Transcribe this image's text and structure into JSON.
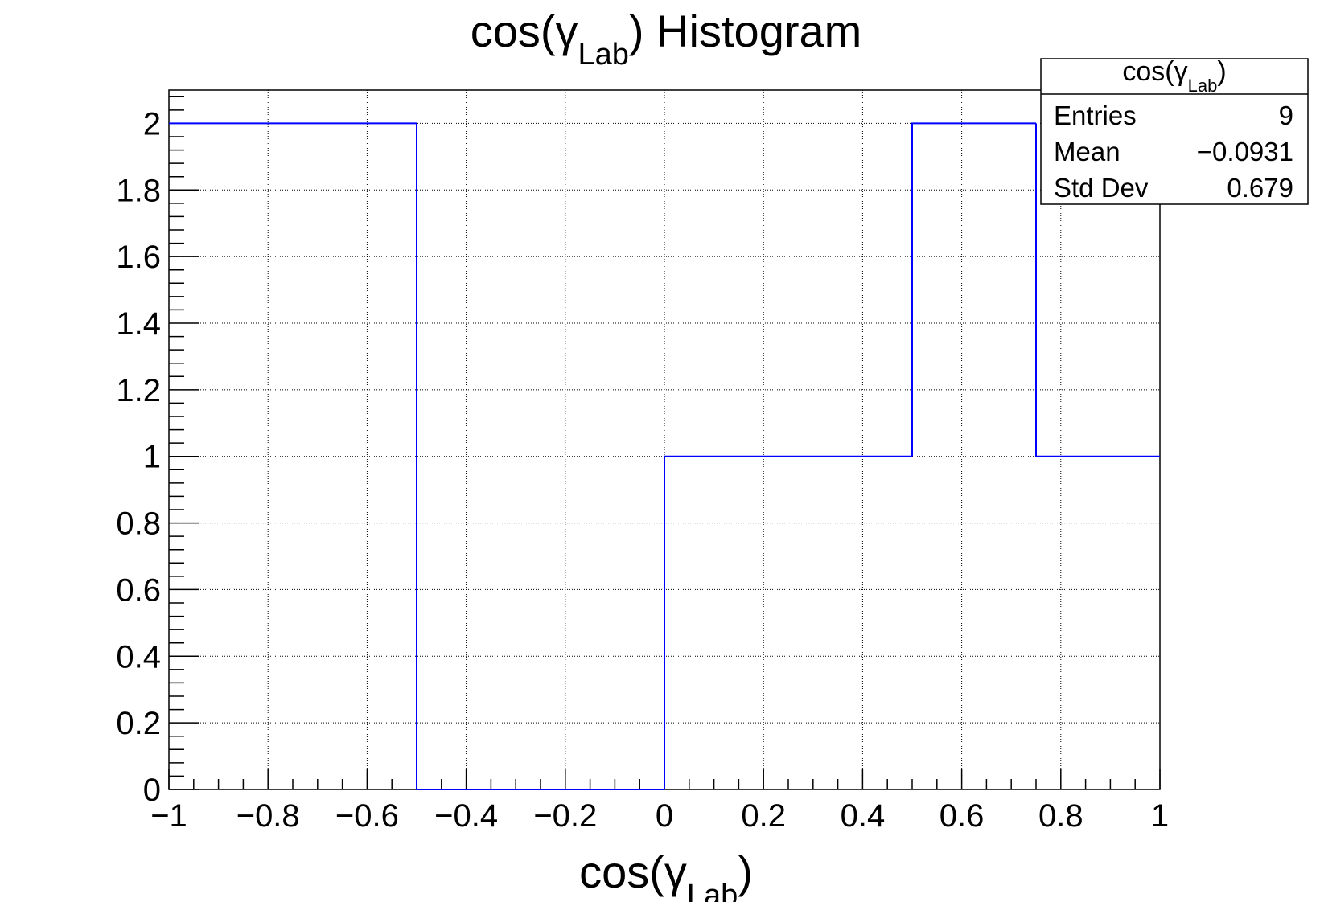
{
  "chart_data": {
    "type": "bar",
    "title": {
      "main": "cos(γ",
      "sub": "Lab",
      "tail": ") Histogram"
    },
    "xlabel": {
      "main": "cos(γ",
      "sub": "Lab",
      "tail": ")"
    },
    "ylabel": "",
    "xlim": [
      -1,
      1
    ],
    "ylim": [
      0,
      2.1
    ],
    "grid": true,
    "bin_edges": [
      -1,
      -0.75,
      -0.5,
      -0.25,
      0,
      0.25,
      0.5,
      0.75,
      1
    ],
    "values": [
      2,
      2,
      0,
      0,
      1,
      1,
      2,
      1
    ],
    "x_ticks": [
      "−1",
      "−0.8",
      "−0.6",
      "−0.4",
      "−0.2",
      "0",
      "0.2",
      "0.4",
      "0.6",
      "0.8",
      "1"
    ],
    "x_tick_values": [
      -1,
      -0.8,
      -0.6,
      -0.4,
      -0.2,
      0,
      0.2,
      0.4,
      0.6,
      0.8,
      1
    ],
    "y_ticks": [
      "0",
      "0.2",
      "0.4",
      "0.6",
      "0.8",
      "1",
      "1.2",
      "1.4",
      "1.6",
      "1.8",
      "2"
    ],
    "y_tick_values": [
      0,
      0.2,
      0.4,
      0.6,
      0.8,
      1,
      1.2,
      1.4,
      1.6,
      1.8,
      2
    ],
    "line_color": "#0000ff",
    "stats_box": {
      "title": {
        "main": "cos(γ",
        "sub": "Lab",
        "tail": ")"
      },
      "placement": "top-right",
      "rows": [
        {
          "label": "Entries",
          "value": "9"
        },
        {
          "label": "Mean",
          "value": "−0.0931"
        },
        {
          "label": "Std Dev",
          "value": "0.679"
        }
      ]
    }
  }
}
